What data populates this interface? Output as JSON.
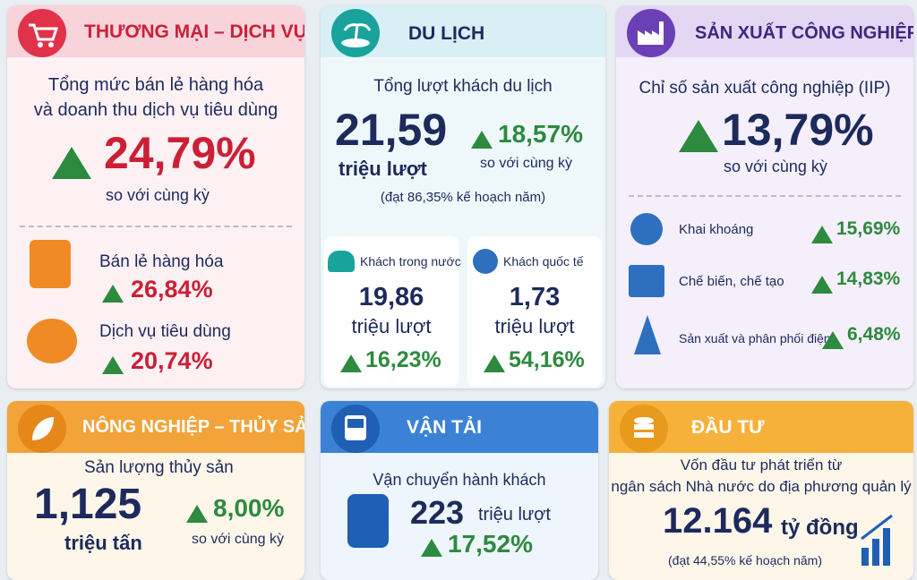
{
  "commerce": {
    "title": "THƯƠNG MẠI – DỊCH VỤ",
    "heading": [
      "Tổng mức bán lẻ hàng hóa",
      "và doanh thu dịch vụ tiêu dùng"
    ],
    "growth": "24,79%",
    "compare": "so với cùng kỳ",
    "items": [
      {
        "label": "Bán lẻ hàng hóa",
        "growth": "26,84%"
      },
      {
        "label": "Dịch vụ tiêu dùng",
        "growth": "20,74%"
      }
    ]
  },
  "tourism": {
    "title": "DU LỊCH",
    "heading": "Tổng lượt khách du lịch",
    "total": "21,59",
    "unit": "triệu lượt",
    "growth": "18,57%",
    "compare": "so với cùng kỳ",
    "plan": "(đạt 86,35% kế hoạch năm)",
    "items": [
      {
        "label": "Khách trong nước",
        "total": "19,86",
        "unit": "triệu lượt",
        "growth": "16,23%"
      },
      {
        "label": "Khách quốc tế",
        "total": "1,73",
        "unit": "triệu lượt",
        "growth": "54,16%"
      }
    ]
  },
  "industry": {
    "title": "SẢN XUẤT CÔNG NGHIỆP",
    "heading": "Chỉ số sản xuất công nghiệp (IIP)",
    "growth": "13,79%",
    "compare": "so với cùng kỳ",
    "items": [
      {
        "label": "Khai khoáng",
        "growth": "15,69%"
      },
      {
        "label": "Chế biến, chế tạo",
        "growth": "14,83%"
      },
      {
        "label": "Sản xuất và phân phối điện",
        "growth": "6,48%"
      }
    ]
  },
  "agriculture": {
    "title": "NÔNG NGHIỆP – THỦY SẢN",
    "heading": "Sản lượng thủy sản",
    "total": "1,125",
    "unit": "triệu tấn",
    "growth": "8,00%",
    "compare": "so với cùng kỳ"
  },
  "transport": {
    "title": "VẬN TẢI",
    "heading": "Vận chuyển hành khách",
    "total": "223",
    "unit": "triệu lượt",
    "growth": "17,52%"
  },
  "investment": {
    "title": "ĐẦU TƯ",
    "heading": [
      "Vốn đầu tư phát triển từ",
      "ngân sách Nhà nước do địa phương quản lý"
    ],
    "total": "12.164",
    "unit": "tỷ đồng",
    "plan": "(đạt 44,55% kế hoạch năm)"
  }
}
